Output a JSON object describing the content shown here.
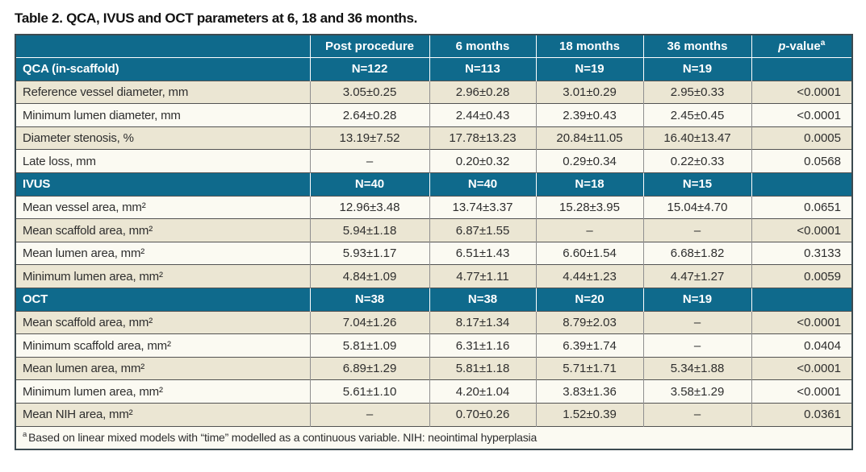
{
  "title": "Table 2. QCA, IVUS and OCT parameters at 6, 18 and 36 months.",
  "header": {
    "columns": [
      "Post procedure",
      "6 months",
      "18 months",
      "36 months"
    ],
    "pvalue": {
      "italic": "p",
      "rest": "-value",
      "sup": "a"
    }
  },
  "sections": [
    {
      "label": "QCA (in-scaffold)",
      "counts": [
        "N=122",
        "N=113",
        "N=19",
        "N=19"
      ],
      "rows": [
        {
          "label": "Reference vessel diameter, mm",
          "values": [
            "3.05±0.25",
            "2.96±0.28",
            "3.01±0.29",
            "2.95±0.33"
          ],
          "p": "<0.0001"
        },
        {
          "label": "Minimum lumen diameter, mm",
          "values": [
            "2.64±0.28",
            "2.44±0.43",
            "2.39±0.43",
            "2.45±0.45"
          ],
          "p": "<0.0001"
        },
        {
          "label": "Diameter stenosis, %",
          "values": [
            "13.19±7.52",
            "17.78±13.23",
            "20.84±11.05",
            "16.40±13.47"
          ],
          "p": "0.0005"
        },
        {
          "label": "Late loss, mm",
          "values": [
            "–",
            "0.20±0.32",
            "0.29±0.34",
            "0.22±0.33"
          ],
          "p": "0.0568"
        }
      ]
    },
    {
      "label": "IVUS",
      "counts": [
        "N=40",
        "N=40",
        "N=18",
        "N=15"
      ],
      "rows": [
        {
          "label": "Mean vessel area, mm²",
          "values": [
            "12.96±3.48",
            "13.74±3.37",
            "15.28±3.95",
            "15.04±4.70"
          ],
          "p": "0.0651"
        },
        {
          "label": "Mean scaffold area, mm²",
          "values": [
            "5.94±1.18",
            "6.87±1.55",
            "–",
            "–"
          ],
          "p": "<0.0001"
        },
        {
          "label": "Mean lumen area, mm²",
          "values": [
            "5.93±1.17",
            "6.51±1.43",
            "6.60±1.54",
            "6.68±1.82"
          ],
          "p": "0.3133"
        },
        {
          "label": "Minimum lumen area, mm²",
          "values": [
            "4.84±1.09",
            "4.77±1.11",
            "4.44±1.23",
            "4.47±1.27"
          ],
          "p": "0.0059"
        }
      ]
    },
    {
      "label": "OCT",
      "counts": [
        "N=38",
        "N=38",
        "N=20",
        "N=19"
      ],
      "rows": [
        {
          "label": "Mean scaffold area, mm²",
          "values": [
            "7.04±1.26",
            "8.17±1.34",
            "8.79±2.03",
            "–"
          ],
          "p": "<0.0001"
        },
        {
          "label": "Minimum scaffold area, mm²",
          "values": [
            "5.81±1.09",
            "6.31±1.16",
            "6.39±1.74",
            "–"
          ],
          "p": "0.0404"
        },
        {
          "label": "Mean lumen area, mm²",
          "values": [
            "6.89±1.29",
            "5.81±1.18",
            "5.71±1.71",
            "5.34±1.88"
          ],
          "p": "<0.0001"
        },
        {
          "label": "Minimum lumen area, mm²",
          "values": [
            "5.61±1.10",
            "4.20±1.04",
            "3.83±1.36",
            "3.58±1.29"
          ],
          "p": "<0.0001"
        },
        {
          "label": "Mean NIH area, mm²",
          "values": [
            "–",
            "0.70±0.26",
            "1.52±0.39",
            "–"
          ],
          "p": "0.0361"
        }
      ]
    }
  ],
  "footnote": {
    "sup": "a",
    "text": "Based on linear mixed models with “time” modelled as a continuous variable. NIH: neointimal hyperplasia"
  },
  "colors": {
    "header_teal": "#0f6a8c",
    "row_beige": "#ebe6d3",
    "row_white": "#fbfaf2"
  }
}
